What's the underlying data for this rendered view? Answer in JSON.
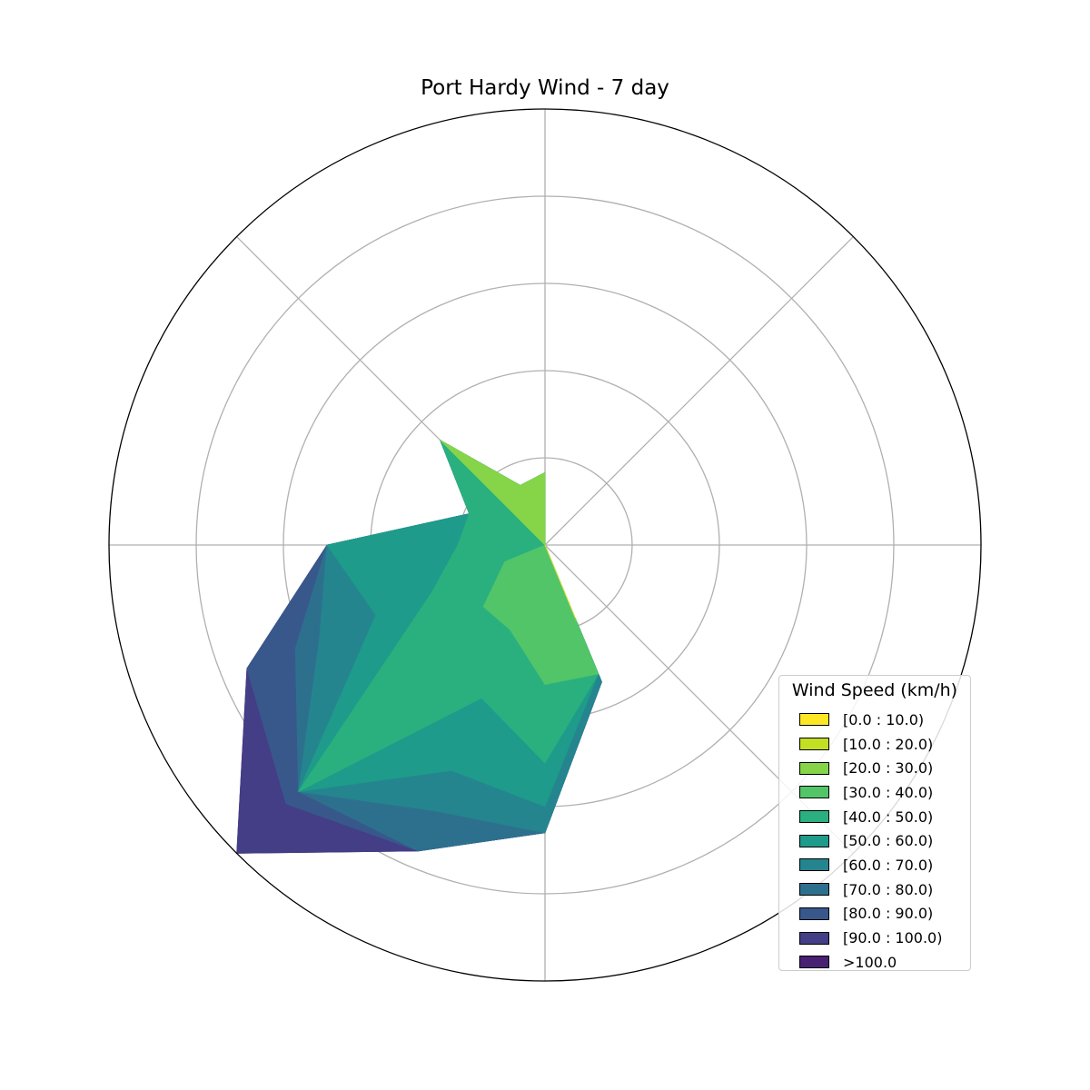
{
  "chart_data": {
    "type": "windrose-area",
    "title": "Port Hardy Wind - 7 day",
    "legend": {
      "title": "Wind Speed (km/h)",
      "placement": "lower-right",
      "bins": [
        {
          "label": "[0.0 : 10.0)",
          "color": "#fde725"
        },
        {
          "label": "[10.0 : 20.0)",
          "color": "#c2df23"
        },
        {
          "label": "[20.0 : 30.0)",
          "color": "#86d549"
        },
        {
          "label": "[30.0 : 40.0)",
          "color": "#52c569"
        },
        {
          "label": "[40.0 : 50.0)",
          "color": "#2ab07f"
        },
        {
          "label": "[50.0 : 60.0)",
          "color": "#1e9b8a"
        },
        {
          "label": "[60.0 : 70.0)",
          "color": "#25858e"
        },
        {
          "label": "[70.0 : 80.0)",
          "color": "#2d708e"
        },
        {
          "label": "[80.0 : 90.0)",
          "color": "#38588c"
        },
        {
          "label": "[90.0 : 100.0)",
          "color": "#433e85"
        },
        {
          ">100.0": null,
          "label": ">100.0",
          "color": "#482173"
        }
      ]
    },
    "directions_deg": [
      0,
      22.5,
      45,
      67.5,
      90,
      112.5,
      135,
      157.5,
      180,
      202.5,
      225,
      247.5,
      270,
      292.5,
      315,
      337.5
    ],
    "radial_max": 5,
    "radial_gridlines": [
      1,
      2,
      3,
      4,
      5
    ],
    "angular_gridlines_deg": [
      0,
      45,
      90,
      135,
      180,
      225,
      270,
      315
    ],
    "grid": true,
    "cumulative_series": [
      {
        "bin": "[0.0 : 10.0)",
        "values": [
          0,
          0,
          0,
          0,
          0,
          0,
          0,
          0.9,
          0,
          0,
          0,
          0,
          0,
          0,
          0,
          0
        ]
      },
      {
        "bin": "[10.0 : 20.0)",
        "values": [
          0,
          0,
          0,
          0,
          0,
          0,
          0,
          0.92,
          0,
          0,
          0,
          0,
          0,
          0,
          0,
          0
        ]
      },
      {
        "bin": "[20.0 : 30.0)",
        "values": [
          0.83,
          0,
          0,
          0,
          0,
          0,
          0,
          0.96,
          0,
          0,
          0,
          0,
          0,
          0,
          1.7,
          0.74
        ]
      },
      {
        "bin": "[30.0 : 40.0)",
        "values": [
          0.83,
          0,
          0,
          0,
          0,
          0,
          0,
          1.6,
          1.6,
          1.05,
          1.0,
          0.5,
          0,
          0,
          1.7,
          0.74
        ]
      },
      {
        "bin": "[40.0 : 50.0)",
        "values": [
          0.83,
          0,
          0,
          0,
          0,
          0,
          0,
          1.6,
          2.5,
          1.9,
          4.0,
          1.4,
          1.0,
          0.94,
          1.7,
          0.74
        ]
      },
      {
        "bin": "[50.0 : 60.0)",
        "values": [
          0.83,
          0,
          0,
          0,
          0,
          0,
          0,
          1.6,
          3.0,
          2.8,
          4.0,
          2.1,
          2.5,
          0.94,
          1.7,
          0.74
        ]
      },
      {
        "bin": "[60.0 : 70.0)",
        "values": [
          0.83,
          0,
          0,
          0,
          0,
          0,
          0,
          1.7,
          3.3,
          3.3,
          4.0,
          2.8,
          2.5,
          0.94,
          1.7,
          0.74
        ]
      },
      {
        "bin": "[70.0 : 80.0)",
        "values": [
          0.83,
          0,
          0,
          0,
          0,
          0,
          0,
          1.7,
          3.3,
          3.8,
          4.0,
          3.1,
          2.5,
          0.94,
          1.7,
          0.74
        ]
      },
      {
        "bin": "[80.0 : 90.0)",
        "values": [
          0.83,
          0,
          0,
          0,
          0,
          0,
          0,
          1.7,
          3.3,
          3.8,
          4.2,
          3.7,
          2.5,
          0.94,
          1.7,
          0.74
        ]
      },
      {
        "bin": "[90.0 : 100.0)",
        "values": [
          0.83,
          0,
          0,
          0,
          0,
          0,
          0,
          1.7,
          3.3,
          3.8,
          5.0,
          3.7,
          2.5,
          0.94,
          1.7,
          0.74
        ]
      },
      {
        "bin": ">100.0",
        "values": [
          0.83,
          0,
          0,
          0,
          0,
          0,
          0,
          1.7,
          3.3,
          3.8,
          5.0,
          3.7,
          2.5,
          0.94,
          1.7,
          0.74
        ]
      }
    ]
  }
}
